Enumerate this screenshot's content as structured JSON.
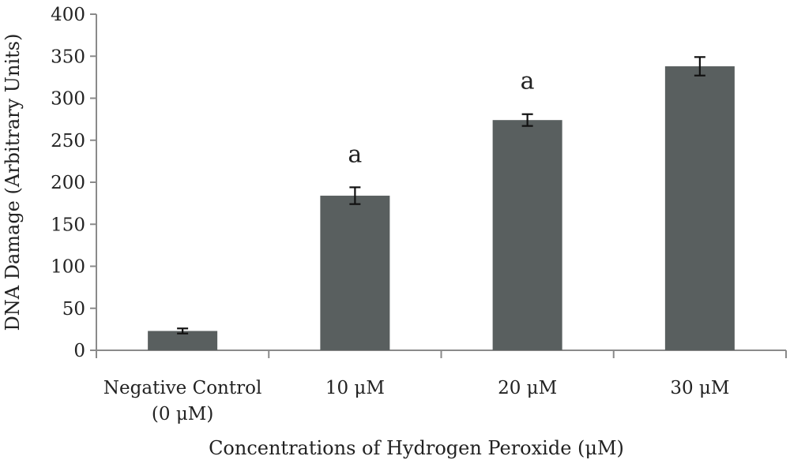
{
  "chart_data": {
    "type": "bar",
    "title": "",
    "xlabel": "Concentrations of Hydrogen Peroxide (μM)",
    "ylabel": "DNA Damage (Arbitrary Units)",
    "ylim": [
      0,
      400
    ],
    "yticks": [
      0,
      50,
      100,
      150,
      200,
      250,
      300,
      350,
      400
    ],
    "categories": [
      [
        "Negative Control",
        "(0 μM)"
      ],
      [
        "10 μM"
      ],
      [
        "20 μM"
      ],
      [
        "30 μM"
      ]
    ],
    "values": [
      23,
      184,
      274,
      338
    ],
    "errors": [
      3,
      10,
      7,
      11
    ],
    "annotations": [
      "",
      "a",
      "a",
      ""
    ],
    "bar_color": "#595f5f",
    "grid": false,
    "legend": "none"
  }
}
